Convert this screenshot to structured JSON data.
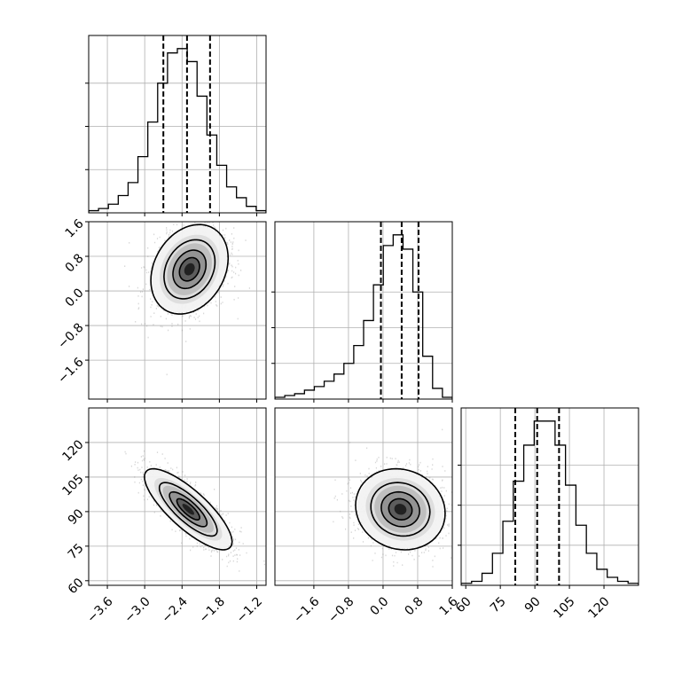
{
  "chart_data": {
    "type": "corner",
    "parameters": [
      {
        "limits": [
          -3.9,
          -1.05
        ],
        "ticks": [
          -3.6,
          -3.0,
          -2.4,
          -1.8,
          -1.2
        ],
        "tick_labels": [
          "−3.6",
          "−3.0",
          "−2.4",
          "−1.8",
          "−1.2"
        ],
        "quantiles": [
          -2.7,
          -2.32,
          -1.95
        ],
        "histogram": [
          0.5,
          1,
          2,
          4,
          7,
          13,
          21,
          30,
          37,
          38,
          35,
          27,
          18,
          11,
          6,
          3.5,
          1.5,
          0.5
        ],
        "hist_ticks": [
          10,
          20,
          30
        ]
      },
      {
        "limits": [
          -2.5,
          1.6
        ],
        "ticks": [
          -1.6,
          -0.8,
          0.0,
          0.8,
          1.6
        ],
        "tick_labels": [
          "−1.6",
          "−0.8",
          "0.0",
          "0.8",
          "1.6"
        ],
        "quantiles": [
          -0.05,
          0.43,
          0.82
        ],
        "histogram": [
          0.5,
          1,
          1.5,
          2.5,
          3.5,
          5,
          7,
          10,
          15,
          22,
          32,
          43,
          46,
          42,
          30,
          12,
          3,
          0.5
        ],
        "hist_ticks": [
          10,
          20,
          30
        ]
      },
      {
        "limits": [
          58,
          135
        ],
        "ticks": [
          60,
          75,
          90,
          105,
          120
        ],
        "tick_labels": [
          "60",
          "75",
          "90",
          "105",
          "120"
        ],
        "quantiles": [
          81.5,
          91,
          100.5
        ],
        "histogram": [
          0.5,
          1,
          3,
          8,
          16,
          26,
          35,
          41,
          41,
          35,
          25,
          15,
          8,
          4,
          2,
          1,
          0.5
        ],
        "hist_ticks": [
          10,
          20,
          30
        ]
      }
    ],
    "pairs": [
      {
        "x_param": 0,
        "y_param": 1,
        "center": [
          -2.28,
          0.5
        ],
        "spread": [
          0.3,
          0.5
        ],
        "correlation": 0.25,
        "n_samples": 1600
      },
      {
        "x_param": 0,
        "y_param": 2,
        "center": [
          -2.3,
          91
        ],
        "spread": [
          0.34,
          8.5
        ],
        "correlation": -0.8,
        "n_samples": 1600
      },
      {
        "x_param": 1,
        "y_param": 2,
        "center": [
          0.4,
          91
        ],
        "spread": [
          0.5,
          8.5
        ],
        "correlation": -0.1,
        "n_samples": 1600
      }
    ],
    "contour_levels_sigma": [
      0.5,
      1.0,
      1.5,
      2.0
    ],
    "grid": true,
    "colors": {
      "frame": "#000000",
      "grid": "#b0b0b0",
      "points": "#8c8c8c",
      "quantile_line": "#000000",
      "histogram": "#000000",
      "density_shades": [
        "#f2f2f2",
        "#dcdcdc",
        "#bdbdbd",
        "#909090",
        "#5a5a5a",
        "#1e1e1e"
      ]
    }
  }
}
